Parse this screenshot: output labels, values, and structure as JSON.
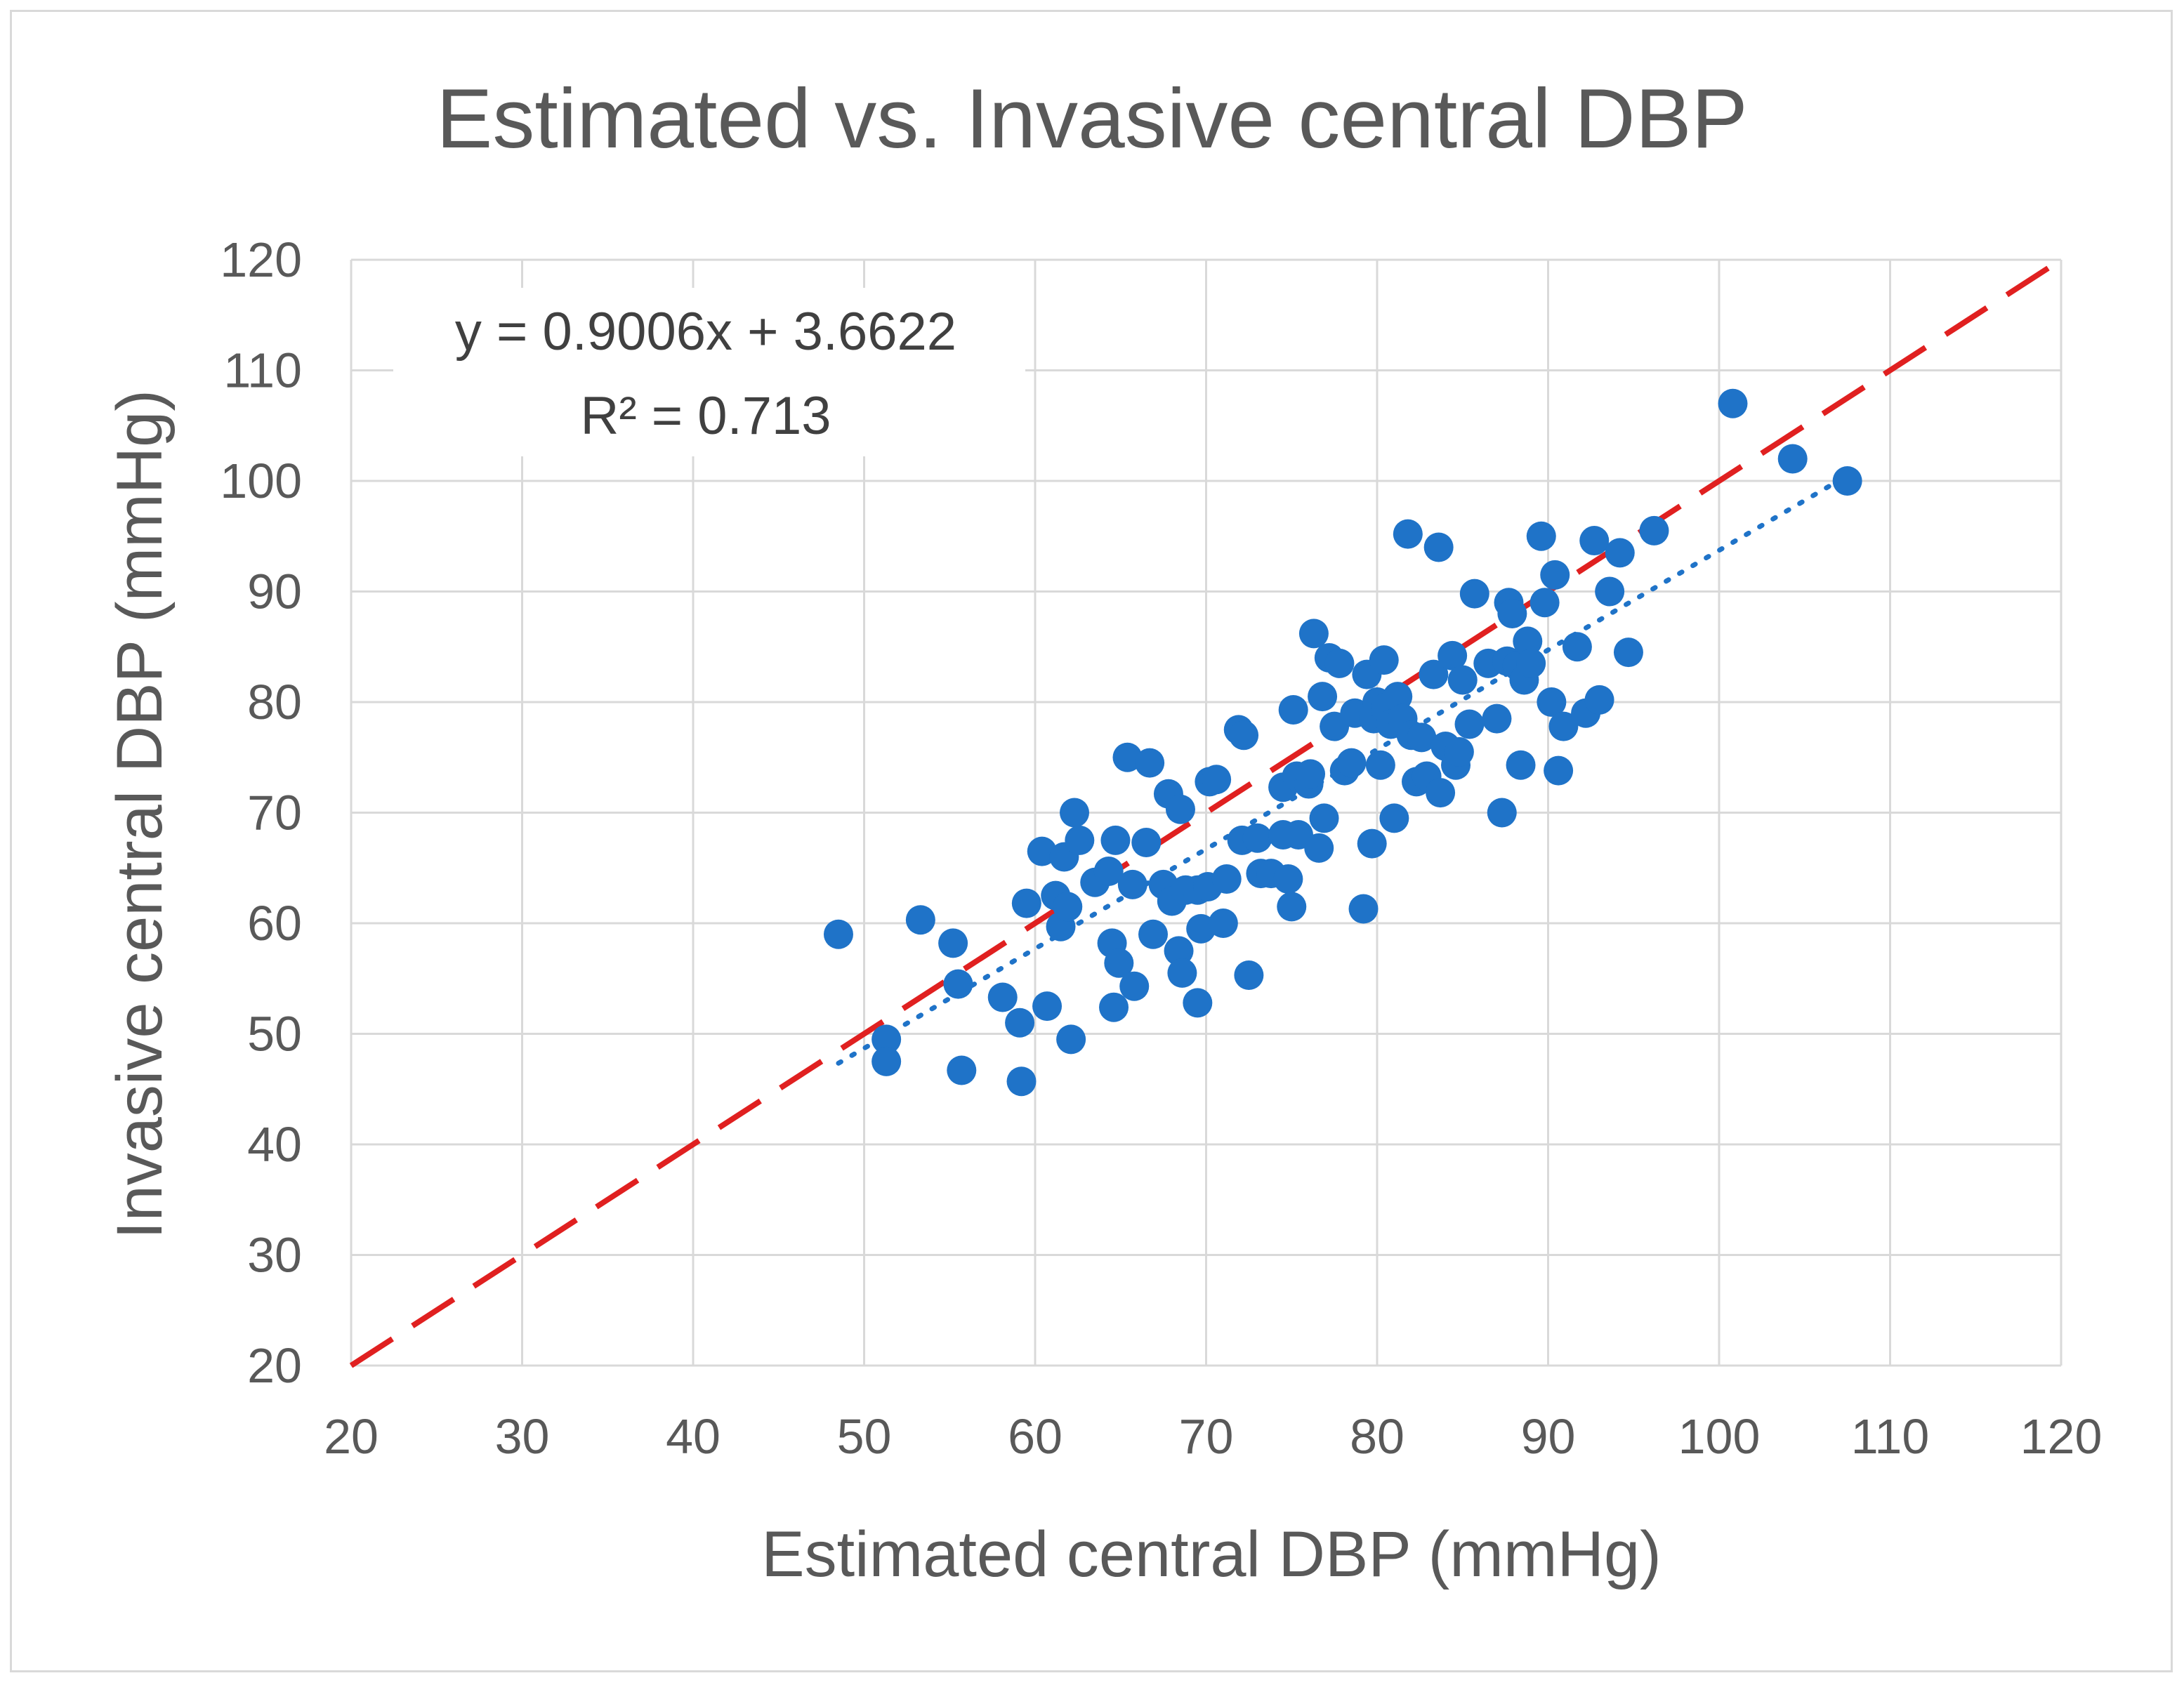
{
  "chart_data": {
    "type": "scatter",
    "title": "Estimated vs. Invasive central DBP",
    "xlabel": "Estimated central DBP (mmHg)",
    "ylabel": "Invasive central DBP (mmHg)",
    "xlim": [
      20,
      120
    ],
    "ylim": [
      20,
      120
    ],
    "xticks": [
      20,
      30,
      40,
      50,
      60,
      70,
      80,
      90,
      100,
      110,
      120
    ],
    "yticks": [
      20,
      30,
      40,
      50,
      60,
      70,
      80,
      90,
      100,
      110,
      120
    ],
    "grid": true,
    "colors": {
      "points": "#1f73c8",
      "identity_line": "#e02020",
      "trendline": "#1f73c8"
    },
    "identity_line": {
      "style": "dashed",
      "from": [
        20,
        20
      ],
      "to": [
        120,
        120
      ]
    },
    "trendline": {
      "style": "dotted",
      "slope": 0.9006,
      "intercept": 3.6622,
      "x_range": [
        48.5,
        107.5
      ]
    },
    "annotation": {
      "equation": "y = 0.9006x + 3.6622",
      "r2": "R² = 0.713"
    },
    "points": [
      [
        48.5,
        59
      ],
      [
        51.3,
        49.5
      ],
      [
        51.3,
        47.5
      ],
      [
        53.3,
        60.3
      ],
      [
        55.2,
        58.2
      ],
      [
        55.5,
        54.5
      ],
      [
        55.7,
        46.7
      ],
      [
        58.1,
        53.3
      ],
      [
        59.1,
        51
      ],
      [
        59.2,
        45.7
      ],
      [
        59.5,
        61.8
      ],
      [
        60.4,
        66.5
      ],
      [
        60.7,
        52.5
      ],
      [
        61.2,
        62.5
      ],
      [
        61.5,
        59.7
      ],
      [
        61.7,
        66
      ],
      [
        61.9,
        61.5
      ],
      [
        62.1,
        49.5
      ],
      [
        62.3,
        70
      ],
      [
        62.6,
        67.5
      ],
      [
        63.5,
        63.7
      ],
      [
        64.3,
        64.7
      ],
      [
        64.5,
        58.2
      ],
      [
        64.6,
        52.4
      ],
      [
        64.7,
        67.5
      ],
      [
        64.9,
        56.4
      ],
      [
        65.4,
        75
      ],
      [
        65.7,
        63.5
      ],
      [
        65.8,
        54.3
      ],
      [
        66.5,
        67.3
      ],
      [
        66.7,
        74.5
      ],
      [
        66.9,
        59
      ],
      [
        67.5,
        63.5
      ],
      [
        67.8,
        71.7
      ],
      [
        68,
        62
      ],
      [
        68.4,
        57.5
      ],
      [
        68.5,
        70.3
      ],
      [
        68.6,
        55.5
      ],
      [
        68.8,
        63
      ],
      [
        69.5,
        63
      ],
      [
        69.5,
        52.8
      ],
      [
        69.7,
        59.5
      ],
      [
        70.1,
        63.3
      ],
      [
        70.2,
        72.8
      ],
      [
        70.6,
        73
      ],
      [
        71,
        60
      ],
      [
        71.2,
        64
      ],
      [
        71.9,
        77.5
      ],
      [
        72.1,
        67.5
      ],
      [
        72.2,
        77
      ],
      [
        72.5,
        55.3
      ],
      [
        73,
        67.7
      ],
      [
        73.2,
        64.5
      ],
      [
        73.8,
        64.5
      ],
      [
        74.5,
        68
      ],
      [
        74.5,
        72.3
      ],
      [
        74.8,
        64
      ],
      [
        75,
        61.5
      ],
      [
        75.1,
        79.3
      ],
      [
        75.3,
        73.3
      ],
      [
        75.4,
        68
      ],
      [
        76,
        72.6
      ],
      [
        76.1,
        73.5
      ],
      [
        76.3,
        86.2
      ],
      [
        76.6,
        66.8
      ],
      [
        76.8,
        80.5
      ],
      [
        76.9,
        69.5
      ],
      [
        77.2,
        84
      ],
      [
        77.5,
        77.8
      ],
      [
        77.8,
        83.5
      ],
      [
        78.1,
        73.8
      ],
      [
        78.5,
        74.5
      ],
      [
        78.7,
        79
      ],
      [
        79.2,
        61.3
      ],
      [
        79.4,
        82.5
      ],
      [
        79.7,
        67.2
      ],
      [
        79.8,
        78.5
      ],
      [
        80,
        80
      ],
      [
        80.2,
        74.3
      ],
      [
        80.4,
        83.8
      ],
      [
        80.5,
        79.5
      ],
      [
        80.8,
        78
      ],
      [
        81,
        69.5
      ],
      [
        81.2,
        80.5
      ],
      [
        81.5,
        78.5
      ],
      [
        81.8,
        95.2
      ],
      [
        82,
        77
      ],
      [
        82.3,
        72.8
      ],
      [
        82.6,
        76.8
      ],
      [
        82.9,
        73.3
      ],
      [
        83.3,
        82.5
      ],
      [
        83.6,
        94
      ],
      [
        83.7,
        71.8
      ],
      [
        84,
        76
      ],
      [
        84.4,
        84.2
      ],
      [
        84.6,
        74.3
      ],
      [
        84.8,
        75.5
      ],
      [
        85,
        82
      ],
      [
        85.4,
        78
      ],
      [
        85.7,
        89.8
      ],
      [
        86.5,
        83.5
      ],
      [
        87,
        78.5
      ],
      [
        87.3,
        70
      ],
      [
        87.6,
        83.7
      ],
      [
        87.7,
        89
      ],
      [
        87.9,
        88
      ],
      [
        88.2,
        83.3
      ],
      [
        88.4,
        74.3
      ],
      [
        88.6,
        82
      ],
      [
        88.8,
        85.5
      ],
      [
        89,
        83.5
      ],
      [
        89.6,
        95
      ],
      [
        89.8,
        89
      ],
      [
        90.2,
        80
      ],
      [
        90.4,
        91.5
      ],
      [
        90.6,
        73.8
      ],
      [
        90.9,
        77.8
      ],
      [
        91.7,
        85
      ],
      [
        92.2,
        79
      ],
      [
        92.7,
        94.6
      ],
      [
        93,
        80.2
      ],
      [
        93.6,
        90
      ],
      [
        94.2,
        93.5
      ],
      [
        94.7,
        84.5
      ],
      [
        96.2,
        95.5
      ],
      [
        100.8,
        107
      ],
      [
        104.3,
        102
      ],
      [
        107.5,
        100
      ]
    ]
  }
}
